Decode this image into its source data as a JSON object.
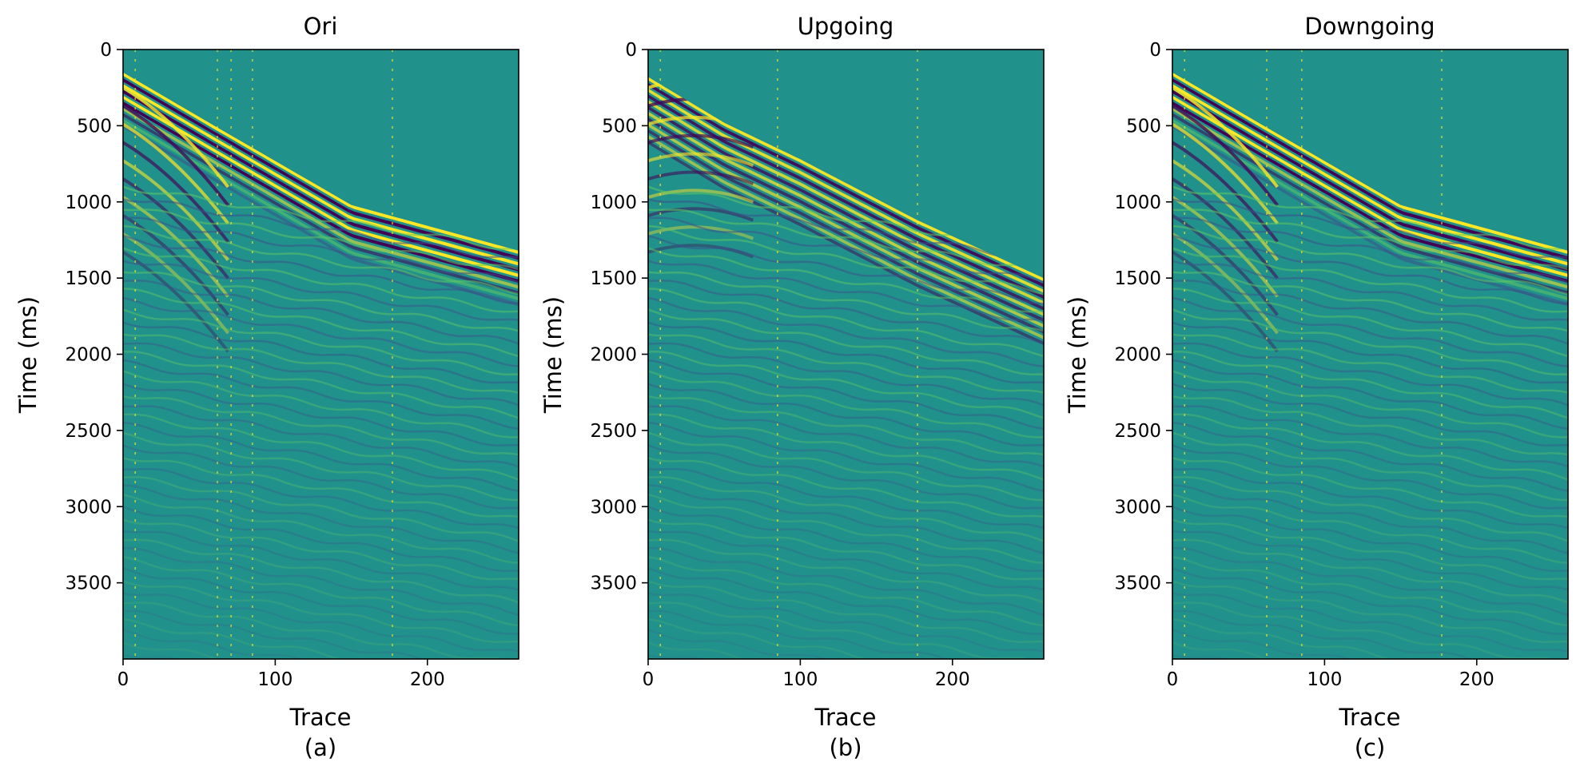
{
  "chart_data": [
    {
      "type": "heatmap",
      "panel": "a",
      "title": "Ori",
      "caption": "(a)",
      "xlabel": "Trace",
      "ylabel": "Time (ms)",
      "xlim": [
        0,
        260
      ],
      "ylim": [
        4000,
        0
      ],
      "xticks": [
        0,
        100,
        200
      ],
      "yticks": [
        0,
        500,
        1000,
        1500,
        2000,
        2500,
        3000,
        3500
      ],
      "colormap": "viridis",
      "first_break": [
        [
          0,
          150
        ],
        [
          60,
          500
        ],
        [
          150,
          1020
        ],
        [
          260,
          1320
        ]
      ],
      "cutoff": null,
      "bright_traces": [
        8,
        62,
        71,
        85,
        177
      ]
    },
    {
      "type": "heatmap",
      "panel": "b",
      "title": "Upgoing",
      "caption": "(b)",
      "xlabel": "Trace",
      "ylabel": "Time (ms)",
      "xlim": [
        0,
        260
      ],
      "ylim": [
        4000,
        0
      ],
      "xticks": [
        0,
        100,
        200
      ],
      "yticks": [
        0,
        500,
        1000,
        1500,
        2000,
        2500,
        3000,
        3500
      ],
      "colormap": "viridis",
      "first_break": [
        [
          0,
          180
        ],
        [
          50,
          480
        ],
        [
          100,
          720
        ],
        [
          177,
          1120
        ],
        [
          260,
          1500
        ]
      ],
      "cutoff": [
        [
          0,
          180
        ],
        [
          50,
          480
        ],
        [
          100,
          720
        ],
        [
          177,
          1120
        ],
        [
          260,
          1500
        ]
      ],
      "bright_traces": [
        8,
        85,
        177
      ]
    },
    {
      "type": "heatmap",
      "panel": "c",
      "title": "Downgoing",
      "caption": "(c)",
      "xlabel": "Trace",
      "ylabel": "Time (ms)",
      "xlim": [
        0,
        260
      ],
      "ylim": [
        4000,
        0
      ],
      "xticks": [
        0,
        100,
        200
      ],
      "yticks": [
        0,
        500,
        1000,
        1500,
        2000,
        2500,
        3000,
        3500
      ],
      "colormap": "viridis",
      "first_break": [
        [
          0,
          150
        ],
        [
          60,
          500
        ],
        [
          150,
          1020
        ],
        [
          260,
          1320
        ]
      ],
      "cutoff": null,
      "bright_traces": [
        8,
        62,
        85,
        177
      ]
    }
  ],
  "colors": {
    "background": "#21918c",
    "peak": "#fde725",
    "trough": "#440154",
    "mid_high": "#5ec962",
    "mid_low": "#3b528b"
  }
}
